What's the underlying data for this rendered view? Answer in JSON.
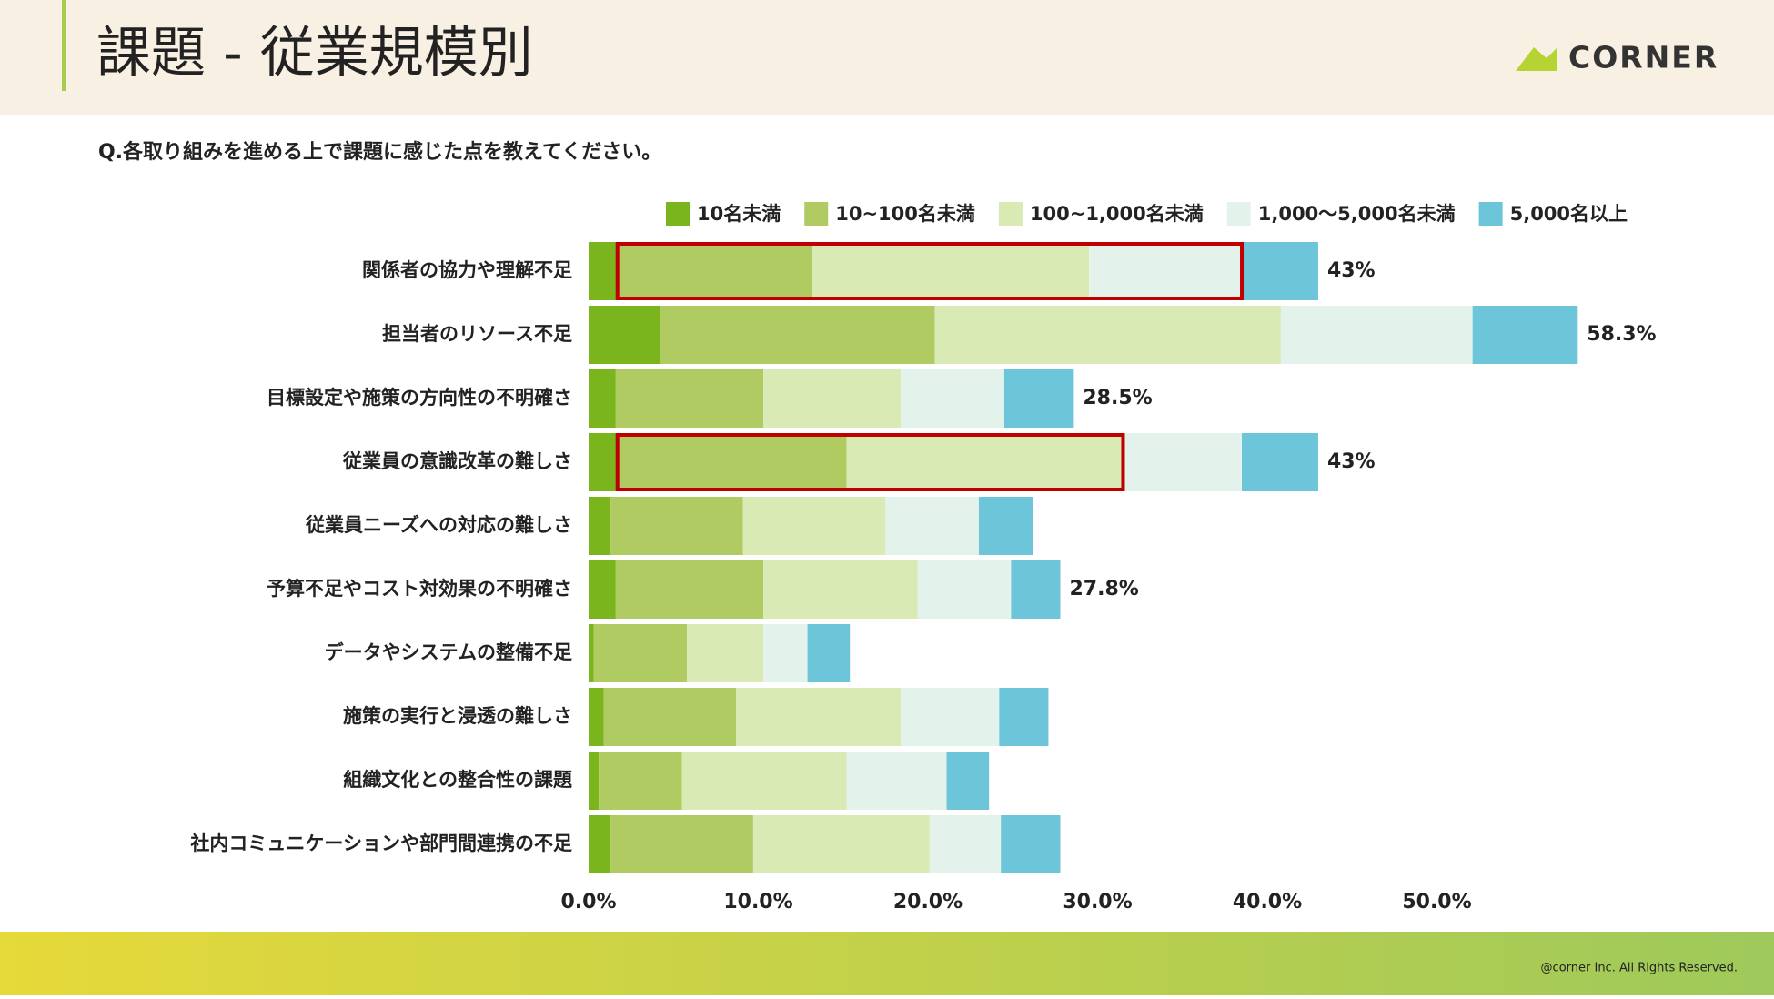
{
  "header": {
    "title": "課題 - 従業規模別",
    "logo": "CORNER"
  },
  "footer": {
    "copyright": "@corner Inc. All Rights Reserved."
  },
  "chart_data": {
    "type": "stacked_bar_horizontal",
    "subtitle": "Q.各取り組みを進める上で課題に感じた点を教えてください。",
    "categories": [
      "関係者の協力や理解不足",
      "担当者のリソース不足",
      "目標設定や施策の方向性の不明確さ",
      "従業員の意識改革の難しさ",
      "従業員ニーズへの対応の難しさ",
      "予算不足やコスト対効果の不明確さ",
      "データやシステムの整備不足",
      "施策の実行と浸透の難しさ",
      "組織文化との整合性の課題",
      "社内コミュニケーションや部門間連携の不足"
    ],
    "series": [
      {
        "name": "10名未満",
        "color": "#7ab51d",
        "values": [
          1.7,
          4.2,
          1.6,
          1.7,
          1.3,
          1.6,
          0.3,
          0.9,
          0.6,
          1.3
        ]
      },
      {
        "name": "10~100名未満",
        "color": "#b0cb62",
        "values": [
          11.5,
          16.2,
          8.7,
          13.5,
          7.8,
          8.7,
          5.5,
          7.8,
          4.9,
          8.4
        ]
      },
      {
        "name": "100~1,000名未満",
        "color": "#d9eab4",
        "values": [
          16.3,
          20.4,
          8.1,
          16.3,
          8.4,
          9.1,
          4.5,
          9.7,
          9.7,
          10.4
        ]
      },
      {
        "name": "1,000〜5,000名未満",
        "color": "#e3f3ec",
        "values": [
          9.0,
          11.3,
          6.1,
          7.0,
          5.5,
          5.5,
          2.6,
          5.8,
          5.9,
          4.2
        ]
      },
      {
        "name": "5,000名以上",
        "color": "#6cc5d8",
        "values": [
          4.5,
          6.2,
          4.1,
          4.5,
          3.2,
          2.9,
          2.5,
          2.9,
          2.5,
          3.5
        ]
      }
    ],
    "totals": [
      43,
      58.3,
      28.5,
      43,
      null,
      27.8,
      null,
      null,
      null,
      null
    ],
    "total_labels": [
      "43%",
      "58.3%",
      "28.5%",
      "43%",
      null,
      "27.8%",
      null,
      null,
      null,
      null
    ],
    "xlim": [
      0,
      60
    ],
    "xticks": [
      {
        "value": 0,
        "label": "0.0%"
      },
      {
        "value": 10,
        "label": "10.0%"
      },
      {
        "value": 20,
        "label": "20.0%"
      },
      {
        "value": 30,
        "label": "30.0%"
      },
      {
        "value": 40,
        "label": "40.0%"
      },
      {
        "value": 50,
        "label": "50.0%"
      }
    ],
    "legend": "top"
  }
}
